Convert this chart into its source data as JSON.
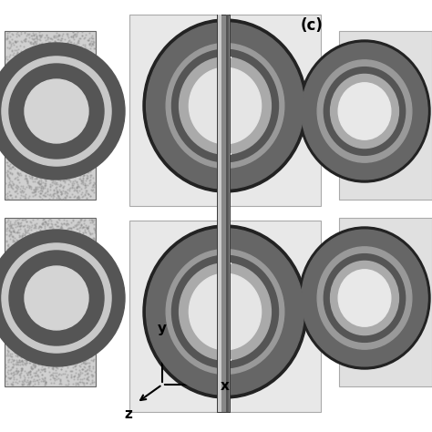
{
  "bg_color": "#ffffff",
  "left_panel_color": "#d4d4d4",
  "center_panel_color": "#e8e8e8",
  "right_panel_color": "#f0f0f0",
  "ring_dark": "#555555",
  "ring_mid": "#888888",
  "ring_light_fill": "#c8c8c8",
  "ring_center_hole": "#e0e0e0",
  "rod_color": "#666666",
  "rod_edge": "#333333",
  "label_c": "(c)",
  "axis_y": "y",
  "axis_x": "x",
  "axis_z": "z"
}
